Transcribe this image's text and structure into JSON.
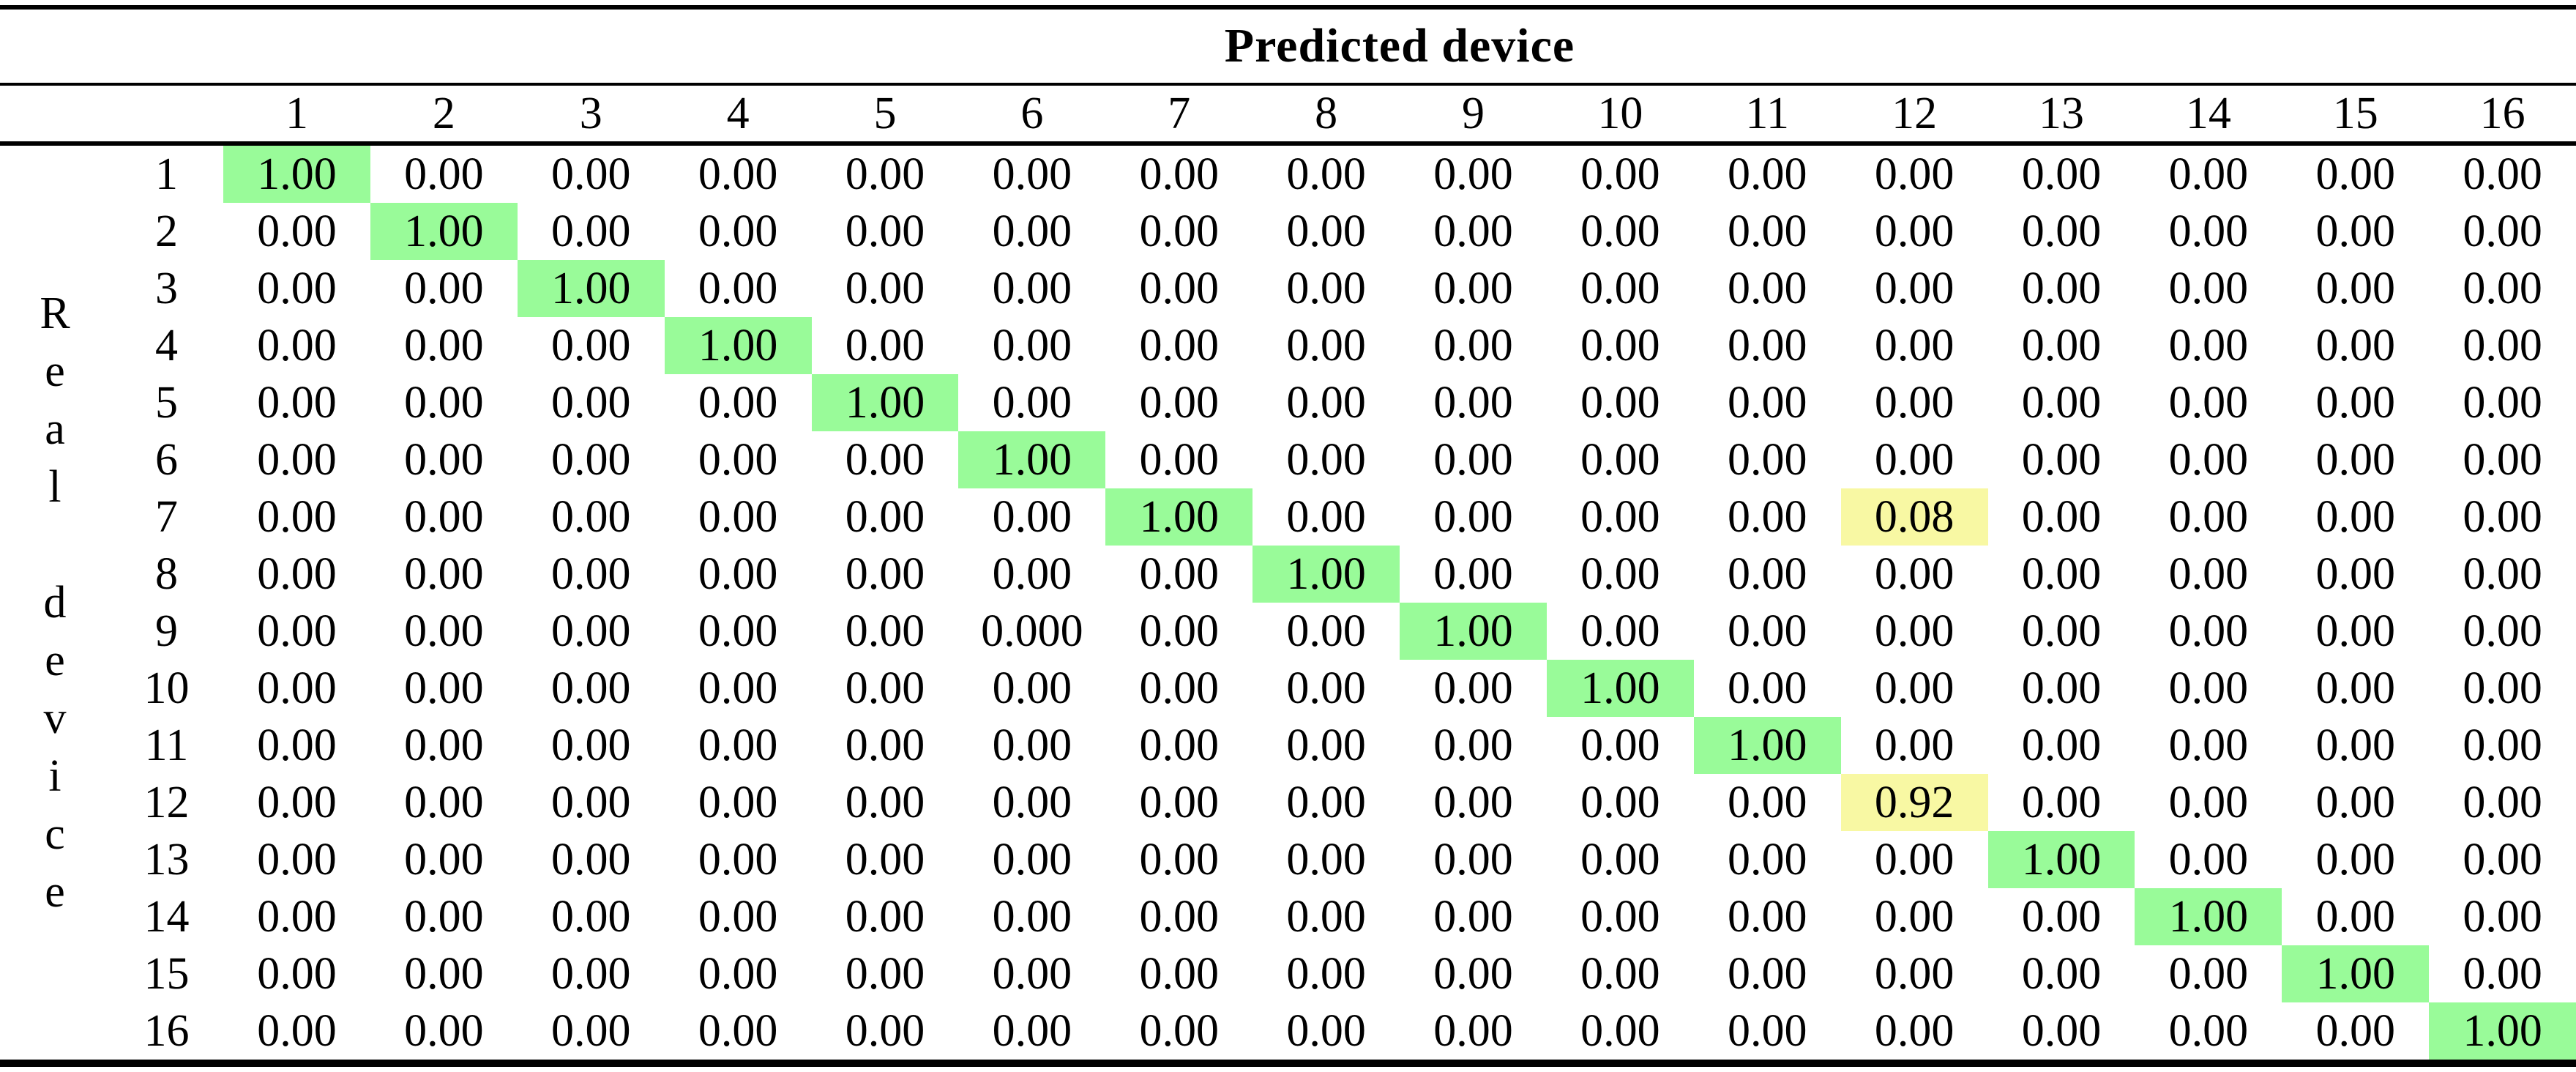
{
  "table": {
    "col_axis_title": "Predicted device",
    "row_axis_title": "Real device",
    "row_axis_letters": [
      "R",
      "e",
      "a",
      "l",
      "",
      "d",
      "e",
      "v",
      "i",
      "c",
      "e"
    ]
  },
  "colors": {
    "diagonal_highlight": "#99FB99",
    "off_diagonal_highlight": "#F8F8A3",
    "rule_color": "#000000",
    "background": "#ffffff"
  },
  "chart_data": {
    "type": "heatmap",
    "title": "Confusion matrix: Real device vs Predicted device",
    "xlabel": "Predicted device",
    "ylabel": "Real device",
    "columns": [
      "1",
      "2",
      "3",
      "4",
      "5",
      "6",
      "7",
      "8",
      "9",
      "10",
      "11",
      "12",
      "13",
      "14",
      "15",
      "16"
    ],
    "rows": [
      "1",
      "2",
      "3",
      "4",
      "5",
      "6",
      "7",
      "8",
      "9",
      "10",
      "11",
      "12",
      "13",
      "14",
      "15",
      "16"
    ],
    "cells": [
      [
        "1.00",
        "0.00",
        "0.00",
        "0.00",
        "0.00",
        "0.00",
        "0.00",
        "0.00",
        "0.00",
        "0.00",
        "0.00",
        "0.00",
        "0.00",
        "0.00",
        "0.00",
        "0.00"
      ],
      [
        "0.00",
        "1.00",
        "0.00",
        "0.00",
        "0.00",
        "0.00",
        "0.00",
        "0.00",
        "0.00",
        "0.00",
        "0.00",
        "0.00",
        "0.00",
        "0.00",
        "0.00",
        "0.00"
      ],
      [
        "0.00",
        "0.00",
        "1.00",
        "0.00",
        "0.00",
        "0.00",
        "0.00",
        "0.00",
        "0.00",
        "0.00",
        "0.00",
        "0.00",
        "0.00",
        "0.00",
        "0.00",
        "0.00"
      ],
      [
        "0.00",
        "0.00",
        "0.00",
        "1.00",
        "0.00",
        "0.00",
        "0.00",
        "0.00",
        "0.00",
        "0.00",
        "0.00",
        "0.00",
        "0.00",
        "0.00",
        "0.00",
        "0.00"
      ],
      [
        "0.00",
        "0.00",
        "0.00",
        "0.00",
        "1.00",
        "0.00",
        "0.00",
        "0.00",
        "0.00",
        "0.00",
        "0.00",
        "0.00",
        "0.00",
        "0.00",
        "0.00",
        "0.00"
      ],
      [
        "0.00",
        "0.00",
        "0.00",
        "0.00",
        "0.00",
        "1.00",
        "0.00",
        "0.00",
        "0.00",
        "0.00",
        "0.00",
        "0.00",
        "0.00",
        "0.00",
        "0.00",
        "0.00"
      ],
      [
        "0.00",
        "0.00",
        "0.00",
        "0.00",
        "0.00",
        "0.00",
        "1.00",
        "0.00",
        "0.00",
        "0.00",
        "0.00",
        "0.08",
        "0.00",
        "0.00",
        "0.00",
        "0.00"
      ],
      [
        "0.00",
        "0.00",
        "0.00",
        "0.00",
        "0.00",
        "0.00",
        "0.00",
        "1.00",
        "0.00",
        "0.00",
        "0.00",
        "0.00",
        "0.00",
        "0.00",
        "0.00",
        "0.00"
      ],
      [
        "0.00",
        "0.00",
        "0.00",
        "0.00",
        "0.00",
        "0.000",
        "0.00",
        "0.00",
        "1.00",
        "0.00",
        "0.00",
        "0.00",
        "0.00",
        "0.00",
        "0.00",
        "0.00"
      ],
      [
        "0.00",
        "0.00",
        "0.00",
        "0.00",
        "0.00",
        "0.00",
        "0.00",
        "0.00",
        "0.00",
        "1.00",
        "0.00",
        "0.00",
        "0.00",
        "0.00",
        "0.00",
        "0.00"
      ],
      [
        "0.00",
        "0.00",
        "0.00",
        "0.00",
        "0.00",
        "0.00",
        "0.00",
        "0.00",
        "0.00",
        "0.00",
        "1.00",
        "0.00",
        "0.00",
        "0.00",
        "0.00",
        "0.00"
      ],
      [
        "0.00",
        "0.00",
        "0.00",
        "0.00",
        "0.00",
        "0.00",
        "0.00",
        "0.00",
        "0.00",
        "0.00",
        "0.00",
        "0.92",
        "0.00",
        "0.00",
        "0.00",
        "0.00"
      ],
      [
        "0.00",
        "0.00",
        "0.00",
        "0.00",
        "0.00",
        "0.00",
        "0.00",
        "0.00",
        "0.00",
        "0.00",
        "0.00",
        "0.00",
        "1.00",
        "0.00",
        "0.00",
        "0.00"
      ],
      [
        "0.00",
        "0.00",
        "0.00",
        "0.00",
        "0.00",
        "0.00",
        "0.00",
        "0.00",
        "0.00",
        "0.00",
        "0.00",
        "0.00",
        "0.00",
        "1.00",
        "0.00",
        "0.00"
      ],
      [
        "0.00",
        "0.00",
        "0.00",
        "0.00",
        "0.00",
        "0.00",
        "0.00",
        "0.00",
        "0.00",
        "0.00",
        "0.00",
        "0.00",
        "0.00",
        "0.00",
        "1.00",
        "0.00"
      ],
      [
        "0.00",
        "0.00",
        "0.00",
        "0.00",
        "0.00",
        "0.00",
        "0.00",
        "0.00",
        "0.00",
        "0.00",
        "0.00",
        "0.00",
        "0.00",
        "0.00",
        "0.00",
        "1.00"
      ]
    ],
    "highlights": [
      {
        "row": 1,
        "col": 1,
        "color": "green"
      },
      {
        "row": 2,
        "col": 2,
        "color": "green"
      },
      {
        "row": 3,
        "col": 3,
        "color": "green"
      },
      {
        "row": 4,
        "col": 4,
        "color": "green"
      },
      {
        "row": 5,
        "col": 5,
        "color": "green"
      },
      {
        "row": 6,
        "col": 6,
        "color": "green"
      },
      {
        "row": 7,
        "col": 7,
        "color": "green"
      },
      {
        "row": 7,
        "col": 12,
        "color": "yellow"
      },
      {
        "row": 8,
        "col": 8,
        "color": "green"
      },
      {
        "row": 9,
        "col": 9,
        "color": "green"
      },
      {
        "row": 10,
        "col": 10,
        "color": "green"
      },
      {
        "row": 11,
        "col": 11,
        "color": "green"
      },
      {
        "row": 12,
        "col": 12,
        "color": "yellow"
      },
      {
        "row": 13,
        "col": 13,
        "color": "green"
      },
      {
        "row": 14,
        "col": 14,
        "color": "green"
      },
      {
        "row": 15,
        "col": 15,
        "color": "green"
      },
      {
        "row": 16,
        "col": 16,
        "color": "green"
      }
    ],
    "legend_position": "none",
    "grid": false
  }
}
